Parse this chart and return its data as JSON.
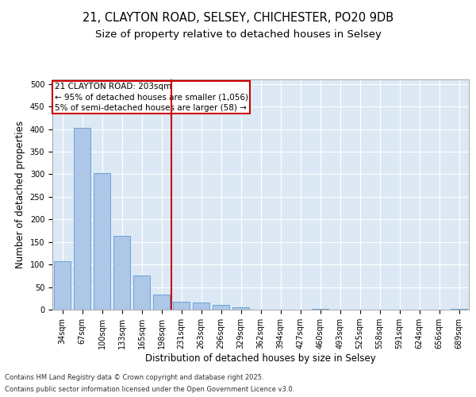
{
  "title_line1": "21, CLAYTON ROAD, SELSEY, CHICHESTER, PO20 9DB",
  "title_line2": "Size of property relative to detached houses in Selsey",
  "xlabel": "Distribution of detached houses by size in Selsey",
  "ylabel": "Number of detached properties",
  "categories": [
    "34sqm",
    "67sqm",
    "100sqm",
    "133sqm",
    "165sqm",
    "198sqm",
    "231sqm",
    "263sqm",
    "296sqm",
    "329sqm",
    "362sqm",
    "394sqm",
    "427sqm",
    "460sqm",
    "493sqm",
    "525sqm",
    "558sqm",
    "591sqm",
    "624sqm",
    "656sqm",
    "689sqm"
  ],
  "values": [
    107,
    403,
    303,
    163,
    75,
    33,
    18,
    15,
    10,
    5,
    0,
    0,
    0,
    2,
    0,
    0,
    0,
    0,
    0,
    0,
    2
  ],
  "bar_color": "#aec6e8",
  "bar_edge_color": "#5b9bd5",
  "property_line_x": 5.5,
  "property_line_color": "#cc0000",
  "annotation_text": "21 CLAYTON ROAD: 203sqm\n← 95% of detached houses are smaller (1,056)\n5% of semi-detached houses are larger (58) →",
  "annotation_box_color": "#cc0000",
  "background_color": "#dce9f5",
  "grid_color": "#ffffff",
  "ylim": [
    0,
    510
  ],
  "yticks": [
    0,
    50,
    100,
    150,
    200,
    250,
    300,
    350,
    400,
    450,
    500
  ],
  "footer_line1": "Contains HM Land Registry data © Crown copyright and database right 2025.",
  "footer_line2": "Contains public sector information licensed under the Open Government Licence v3.0.",
  "title_fontsize": 10.5,
  "subtitle_fontsize": 9.5,
  "tick_fontsize": 7,
  "label_fontsize": 8.5,
  "annotation_fontsize": 7.5,
  "footer_fontsize": 6
}
